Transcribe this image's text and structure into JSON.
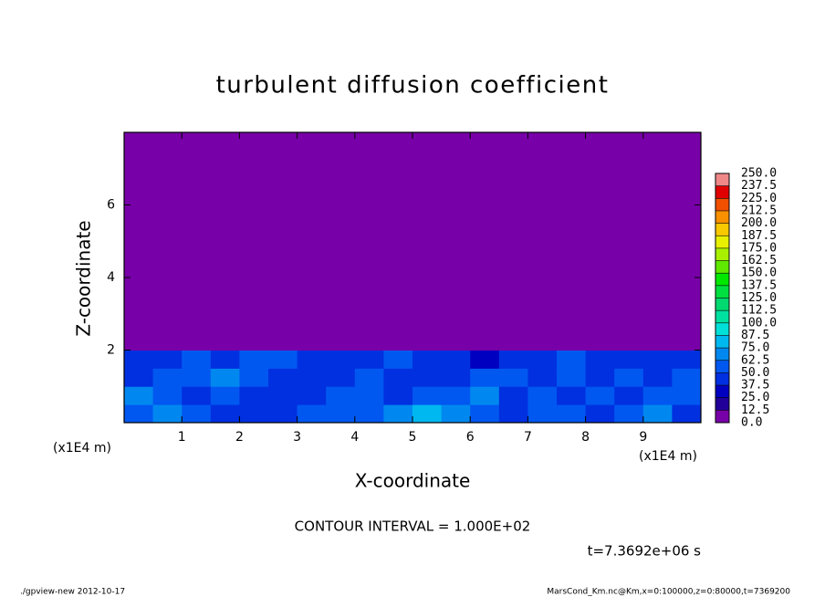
{
  "chart_data": {
    "type": "heatmap",
    "title": "turbulent diffusion coefficient",
    "x_label": "X-coordinate",
    "y_label": "Z-coordinate",
    "x_unit": "(x1E4 m)",
    "y_unit": "(x1E4 m)",
    "xlim": [
      0,
      10
    ],
    "ylim": [
      0,
      8
    ],
    "xticks": [
      1,
      2,
      3,
      4,
      5,
      6,
      7,
      8,
      9
    ],
    "yticks": [
      2,
      4,
      6
    ],
    "field": {
      "x_edges": [
        0,
        0.5,
        1,
        1.5,
        2,
        2.5,
        3,
        3.5,
        4,
        4.5,
        5,
        5.5,
        6,
        6.5,
        7,
        7.5,
        8,
        8.5,
        9,
        9.5,
        10
      ],
      "z_edges": [
        0,
        0.5,
        1,
        1.5,
        2,
        8
      ],
      "values": [
        [
          50,
          62.5,
          55,
          45,
          40,
          45,
          55,
          50,
          55,
          62.5,
          75,
          62.5,
          50,
          40,
          50,
          55,
          45,
          50,
          62.5,
          45
        ],
        [
          62.5,
          55,
          45,
          50,
          45,
          40,
          45,
          55,
          50,
          45,
          50,
          55,
          62.5,
          45,
          50,
          45,
          50,
          45,
          55,
          50
        ],
        [
          45,
          50,
          55,
          62.5,
          50,
          45,
          40,
          45,
          50,
          45,
          40,
          45,
          50,
          55,
          45,
          50,
          45,
          50,
          45,
          50
        ],
        [
          40,
          45,
          50,
          45,
          50,
          55,
          45,
          40,
          45,
          50,
          45,
          40,
          35,
          40,
          45,
          50,
          45,
          40,
          45,
          40
        ],
        [
          0,
          0,
          0,
          0,
          0,
          0,
          0,
          0,
          0,
          0,
          0,
          0,
          0,
          0,
          0,
          0,
          0,
          0,
          0,
          0
        ]
      ]
    },
    "colorbar": {
      "ticks": [
        {
          "value": 0,
          "label": "0.0"
        },
        12.5,
        {
          "value": 25,
          "label": "25.0"
        },
        37.5,
        {
          "value": 50,
          "label": "50.0"
        },
        62.5,
        {
          "value": 75,
          "label": "75.0"
        },
        87.5,
        {
          "value": 100,
          "label": "100.0"
        },
        112.5,
        {
          "value": 125,
          "label": "125.0"
        },
        137.5,
        {
          "value": 150,
          "label": "150.0"
        },
        162.5,
        {
          "value": 175,
          "label": "175.0"
        },
        187.5,
        {
          "value": 200,
          "label": "200.0"
        },
        212.5,
        {
          "value": 225,
          "label": "225.0"
        },
        237.5,
        {
          "value": 250,
          "label": "250.0"
        }
      ],
      "colors": [
        "#7800a8",
        "#200098",
        "#0000c0",
        "#0030e0",
        "#0058f0",
        "#0088f0",
        "#00b8f0",
        "#00e0d8",
        "#00e0a0",
        "#00d870",
        "#00e040",
        "#00e800",
        "#60e800",
        "#a8f000",
        "#e8f000",
        "#f8c800",
        "#f89000",
        "#f05000",
        "#e00000",
        "#f08888"
      ]
    },
    "annotation": "CONTOUR INTERVAL = 1.000E+02",
    "time_label": "t=7.3692e+06 s",
    "footer_left": "./gpview-new  2012-10-17",
    "footer_right": "MarsCond_Km.nc@Km,x=0:100000,z=0:80000,t=7369200"
  }
}
